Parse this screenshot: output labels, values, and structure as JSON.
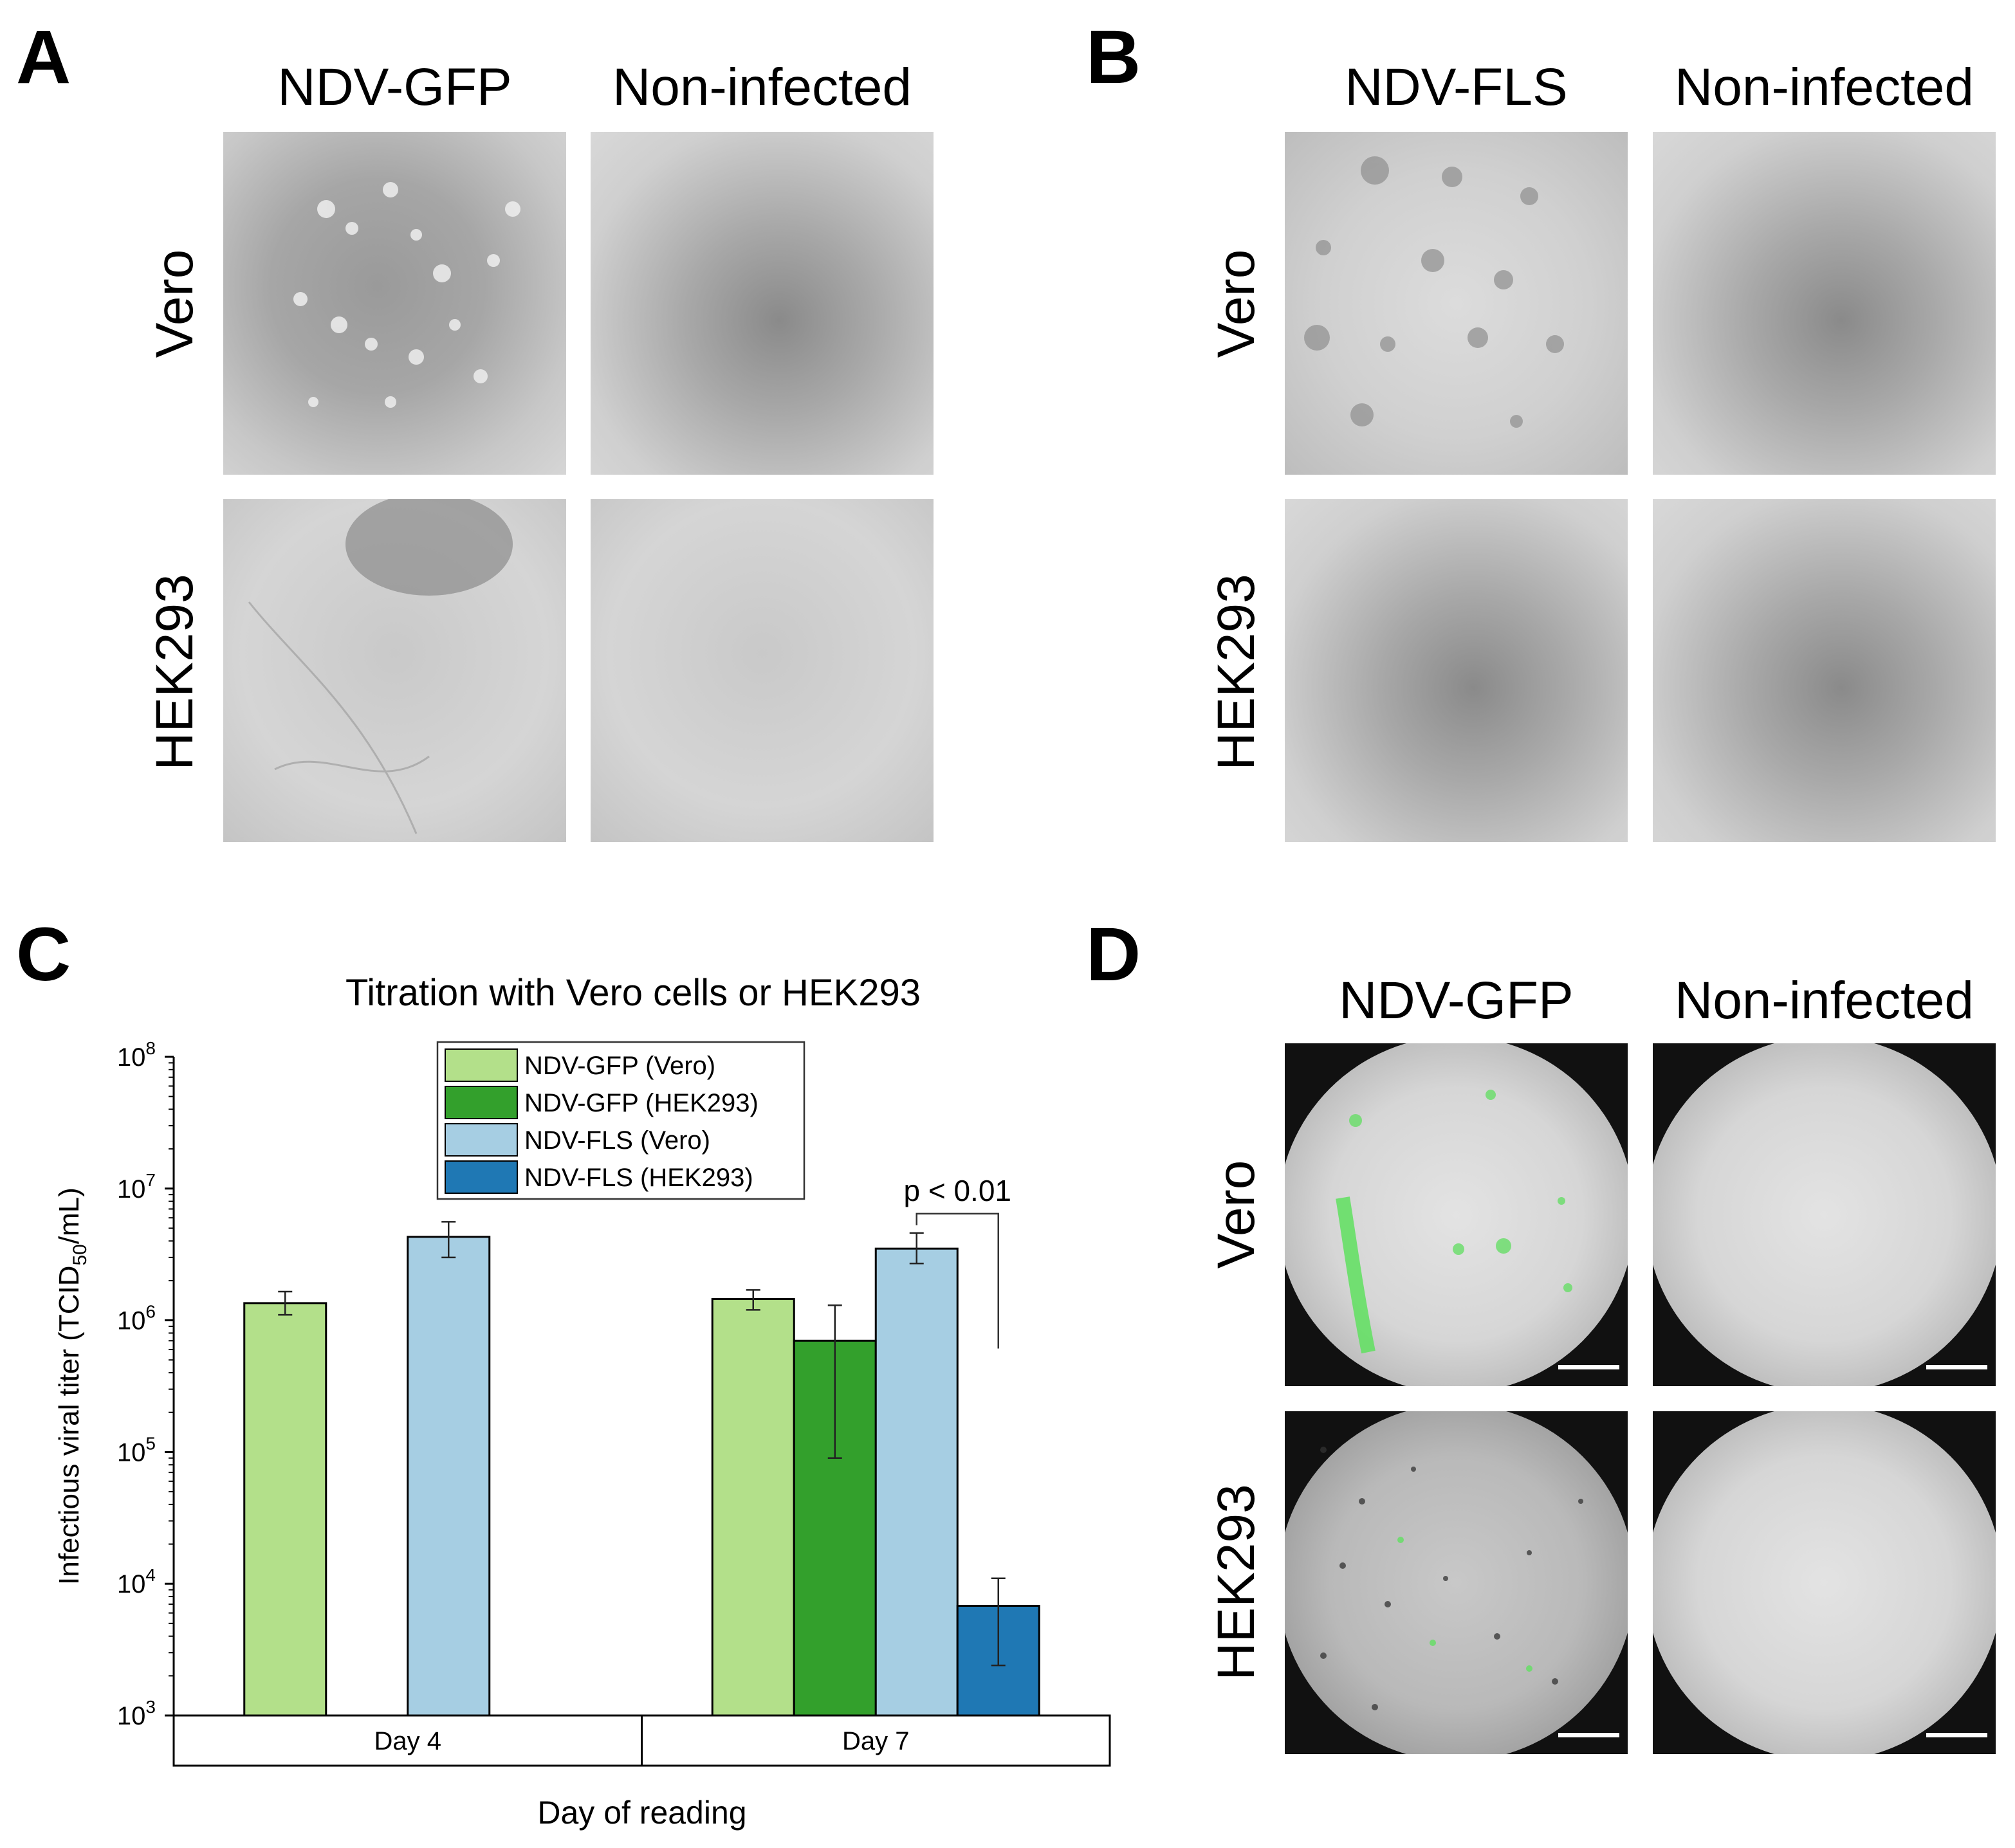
{
  "panels": {
    "a": {
      "letter": "A",
      "col1": "NDV-GFP",
      "col2": "Non-infected",
      "row1": "Vero",
      "row2": "HEK293"
    },
    "b": {
      "letter": "B",
      "col1": "NDV-FLS",
      "col2": "Non-infected",
      "row1": "Vero",
      "row2": "HEK293"
    },
    "c": {
      "letter": "C"
    },
    "d": {
      "letter": "D",
      "col1": "NDV-GFP",
      "col2": "Non-infected",
      "row1": "Vero",
      "row2": "HEK293"
    }
  },
  "chart_data": {
    "type": "bar",
    "title": "Titration with Vero cells or HEK293",
    "ylabel_main": "Infectious viral titer (TCID",
    "ylabel_sub": "50",
    "ylabel_tail": "/mL)",
    "xlabel": "Day of reading",
    "yscale": "log",
    "ylim": [
      1000,
      100000000
    ],
    "yticks": [
      {
        "value": 1000,
        "base": "10",
        "exp": "3"
      },
      {
        "value": 10000,
        "base": "10",
        "exp": "4"
      },
      {
        "value": 100000,
        "base": "10",
        "exp": "5"
      },
      {
        "value": 1000000,
        "base": "10",
        "exp": "6"
      },
      {
        "value": 10000000,
        "base": "10",
        "exp": "7"
      },
      {
        "value": 100000000,
        "base": "10",
        "exp": "8"
      }
    ],
    "categories": [
      "Day 4",
      "Day 7"
    ],
    "legend_position": "top-center",
    "series": [
      {
        "name": "NDV-GFP (Vero)",
        "color": "#b3e08a",
        "values": [
          1350000,
          1450000
        ],
        "err_low": [
          1100000,
          1200000
        ],
        "err_high": [
          1650000,
          1700000
        ]
      },
      {
        "name": "NDV-GFP (HEK293)",
        "color": "#33a02c",
        "values": [
          null,
          700000
        ],
        "err_low": [
          null,
          90000
        ],
        "err_high": [
          null,
          1300000
        ]
      },
      {
        "name": "NDV-FLS (Vero)",
        "color": "#a6cee3",
        "values": [
          4300000,
          3500000
        ],
        "err_low": [
          3000000,
          2700000
        ],
        "err_high": [
          5600000,
          4600000
        ]
      },
      {
        "name": "NDV-FLS (HEK293)",
        "color": "#1f78b4",
        "values": [
          null,
          6800
        ],
        "err_low": [
          null,
          2400
        ],
        "err_high": [
          null,
          11000
        ]
      }
    ],
    "annotation": {
      "text": "p < 0.01",
      "between": [
        "NDV-FLS (Vero)",
        "NDV-FLS (HEK293)"
      ],
      "category": "Day 7"
    }
  }
}
